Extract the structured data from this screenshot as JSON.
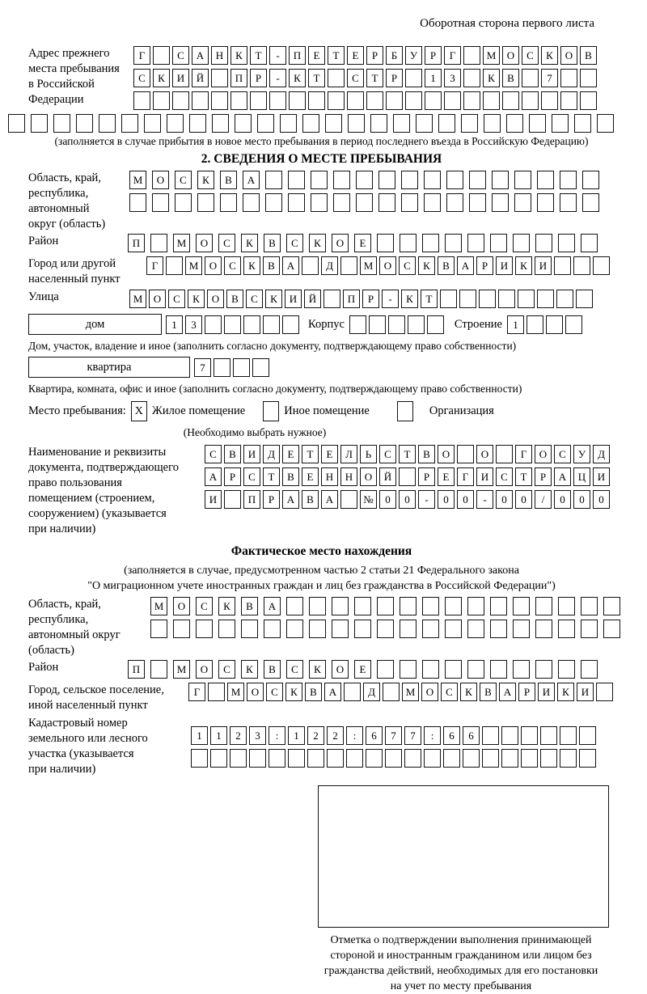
{
  "header": {
    "page_note": "Оборотная сторона первого листа"
  },
  "prev_address": {
    "label_lines": [
      "Адрес прежнего",
      "места пребывания",
      "в Российской",
      "Федерации"
    ],
    "rows": [
      {
        "text": "Г САНКТ-ПЕТЕРБУРГ МОСКОВ",
        "len": 24
      },
      {
        "text": "СКИЙ ПР-КТ СТР 13 КВ 7",
        "len": 24
      },
      {
        "text": "",
        "len": 24
      },
      {
        "text": "",
        "len": 27
      }
    ],
    "note": "(заполняется в случае прибытия в новое место пребывания в период последнего въезда в Российскую Федерацию)"
  },
  "section2": {
    "title": "2. СВЕДЕНИЯ О МЕСТЕ ПРЕБЫВАНИЯ",
    "region": {
      "label_lines": [
        "Область, край,",
        "республика,",
        "автономный",
        "округ (область)"
      ],
      "rows": [
        {
          "text": "МОСКВА",
          "len": 21
        },
        {
          "text": "",
          "len": 21
        }
      ]
    },
    "district": {
      "label": "Район",
      "row": {
        "text": "П МОСКВСКОЕ",
        "len": 21
      }
    },
    "city": {
      "label_lines": [
        "Город или другой",
        "населенный пункт"
      ],
      "row": {
        "text": "Г МОСКВА Д МОСКВАРИКИ",
        "len": 24
      }
    },
    "street": {
      "label": "Улица",
      "row": {
        "text": "МОСКОВСКИЙ ПР-КТ",
        "len": 24
      }
    },
    "house": {
      "label": "дом",
      "row": {
        "text": "13",
        "len": 7
      },
      "korpus_label": "Корпус",
      "korpus_row": {
        "text": "",
        "len": 5
      },
      "stroenie_label": "Строение",
      "stroenie_row": {
        "text": "1",
        "len": 4
      }
    },
    "house_note": "Дом, участок, владение и иное (заполнить согласно документу, подтверждающему право собственности)",
    "apartment": {
      "label": "квартира",
      "row": {
        "text": "7",
        "len": 4
      }
    },
    "apartment_note": "Квартира, комната, офис и иное (заполнить согласно документу, подтверждающему право собственности)",
    "stay_type": {
      "label": "Место пребывания:",
      "checked_mark": "X",
      "options": [
        {
          "label": "Жилое помещение",
          "box": {
            "text": "X",
            "len": 1
          }
        },
        {
          "label": "Иное помещение",
          "box": {
            "text": "",
            "len": 1
          }
        },
        {
          "label": "Организация",
          "box": {
            "text": "",
            "len": 1
          }
        }
      ],
      "note": "(Необходимо выбрать нужное)"
    },
    "document": {
      "label_lines": [
        "Наименование и реквизиты",
        "документа, подтверждающего",
        "право пользования",
        "помещением (строением,",
        "сооружением) (указывается",
        "при наличии)"
      ],
      "rows": [
        {
          "text": "СВИДЕТЕЛЬСТВО О ГОСУД",
          "len": 21
        },
        {
          "text": "АРСТВЕННОЙ РЕГИСТРАЦИ",
          "len": 21
        },
        {
          "text": "И ПРАВА №00-00-00/000",
          "len": 21
        }
      ]
    }
  },
  "section3": {
    "title": "Фактическое место нахождения",
    "note_lines": [
      "(заполняется в случае, предусмотренном частью 2 статьи 21 Федерального закона",
      "\"О миграционном учете иностранных граждан и лиц без гражданства в Российской Федерации\")"
    ],
    "region": {
      "label_lines": [
        "Область, край,",
        "республика,",
        "автономный округ",
        "(область)"
      ],
      "rows": [
        {
          "text": "МОСКВА",
          "len": 21
        },
        {
          "text": "",
          "len": 21
        }
      ]
    },
    "district": {
      "label": "Район",
      "row": {
        "text": "П МОСКВСКОЕ",
        "len": 21
      }
    },
    "city": {
      "label_lines": [
        "Город, сельское поселение,",
        "иной населенный пункт"
      ],
      "row": {
        "text": "Г МОСКВА Д МОСКВАРИКИ",
        "len": 22
      }
    },
    "cadastral": {
      "label_lines": [
        "Кадастровый номер",
        "земельного или лесного",
        "участка (указывается",
        "при наличии)"
      ],
      "rows": [
        {
          "text": "1123:122:677:66",
          "len": 21
        },
        {
          "text": "",
          "len": 21
        }
      ]
    },
    "stamp_note_lines": [
      "Отметка о подтверждении выполнения принимающей",
      "стороной и иностранным гражданином или лицом без",
      "гражданства действий, необходимых для его постановки",
      "на учет по месту пребывания"
    ]
  }
}
